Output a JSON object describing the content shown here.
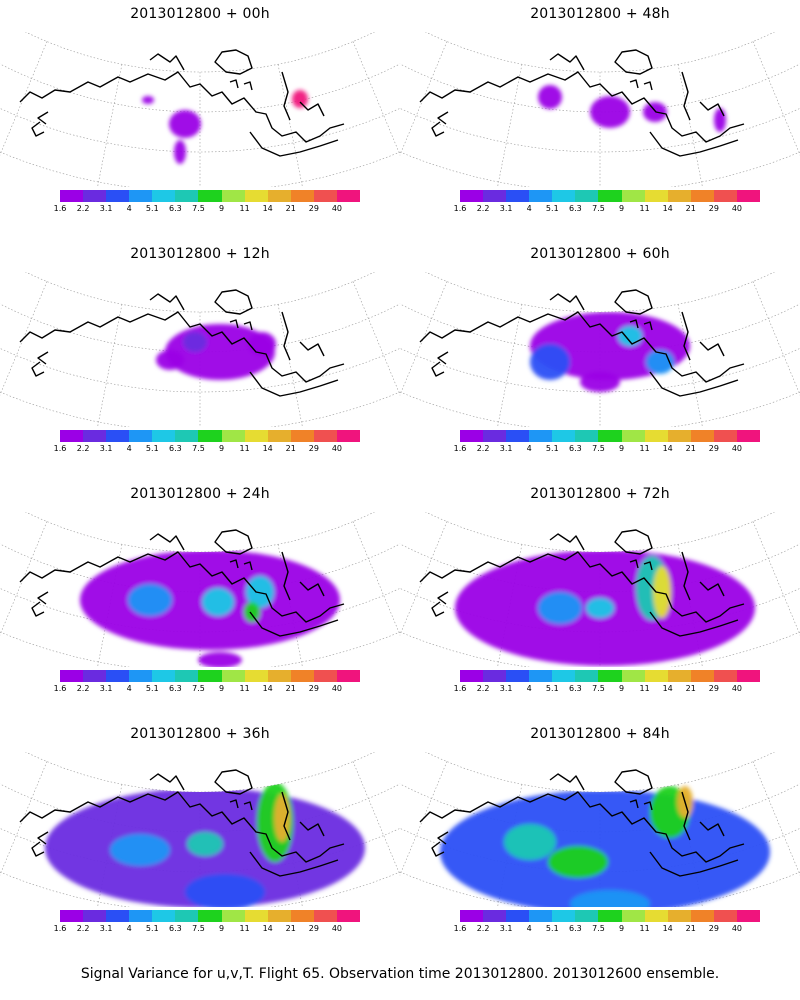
{
  "colorbar": {
    "labels": [
      "1.6",
      "2.2",
      "3.1",
      "4",
      "5.1",
      "6.3",
      "7.5",
      "9",
      "11",
      "14",
      "21",
      "29",
      "40"
    ],
    "colors": [
      "#9B00E6",
      "#6A2BE0",
      "#2A4FF5",
      "#1E96F5",
      "#1EC8E6",
      "#1EC8B4",
      "#1ED21E",
      "#A0E646",
      "#E6DC32",
      "#E6AF2D",
      "#F08228",
      "#F05050",
      "#F0147D"
    ]
  },
  "panels": [
    {
      "title": "2013012800 + 00h",
      "intensity": 0
    },
    {
      "title": "2013012800 + 48h",
      "intensity": 4
    },
    {
      "title": "2013012800 + 12h",
      "intensity": 1
    },
    {
      "title": "2013012800 + 60h",
      "intensity": 5
    },
    {
      "title": "2013012800 + 24h",
      "intensity": 2
    },
    {
      "title": "2013012800 + 72h",
      "intensity": 6
    },
    {
      "title": "2013012800 + 36h",
      "intensity": 3
    },
    {
      "title": "2013012800 + 84h",
      "intensity": 7
    }
  ],
  "caption": "Signal Variance for u,v,T. Flight 65. Observation time 2013012800. 2013012600 ensemble."
}
